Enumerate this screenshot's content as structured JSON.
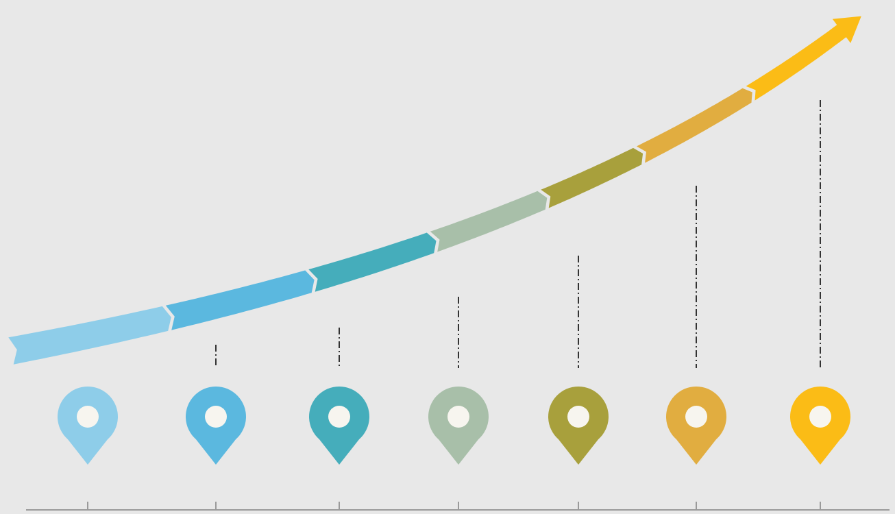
{
  "colors": {
    "background": "#e8e8e8",
    "connector": "#333333",
    "axis": "#9a9a9a",
    "pin_dot": "#f7f5ef",
    "arrow_segments": [
      "#8ecde9",
      "#5bb8df",
      "#45adbb",
      "#a8bfa9",
      "#a8a03c",
      "#e1ad40",
      "#fbbc16"
    ]
  },
  "pins": [
    {
      "icon": "map-pin-icon",
      "color": "#8ecde9",
      "has_connector": false
    },
    {
      "icon": "map-pin-icon",
      "color": "#5bb8df",
      "has_connector": true
    },
    {
      "icon": "map-pin-icon",
      "color": "#45adbb",
      "has_connector": true
    },
    {
      "icon": "map-pin-icon",
      "color": "#a8bfa9",
      "has_connector": true
    },
    {
      "icon": "map-pin-icon",
      "color": "#a8a03c",
      "has_connector": true
    },
    {
      "icon": "map-pin-icon",
      "color": "#e1ad40",
      "has_connector": true
    },
    {
      "icon": "map-pin-icon",
      "color": "#fbbc16",
      "has_connector": true
    }
  ]
}
